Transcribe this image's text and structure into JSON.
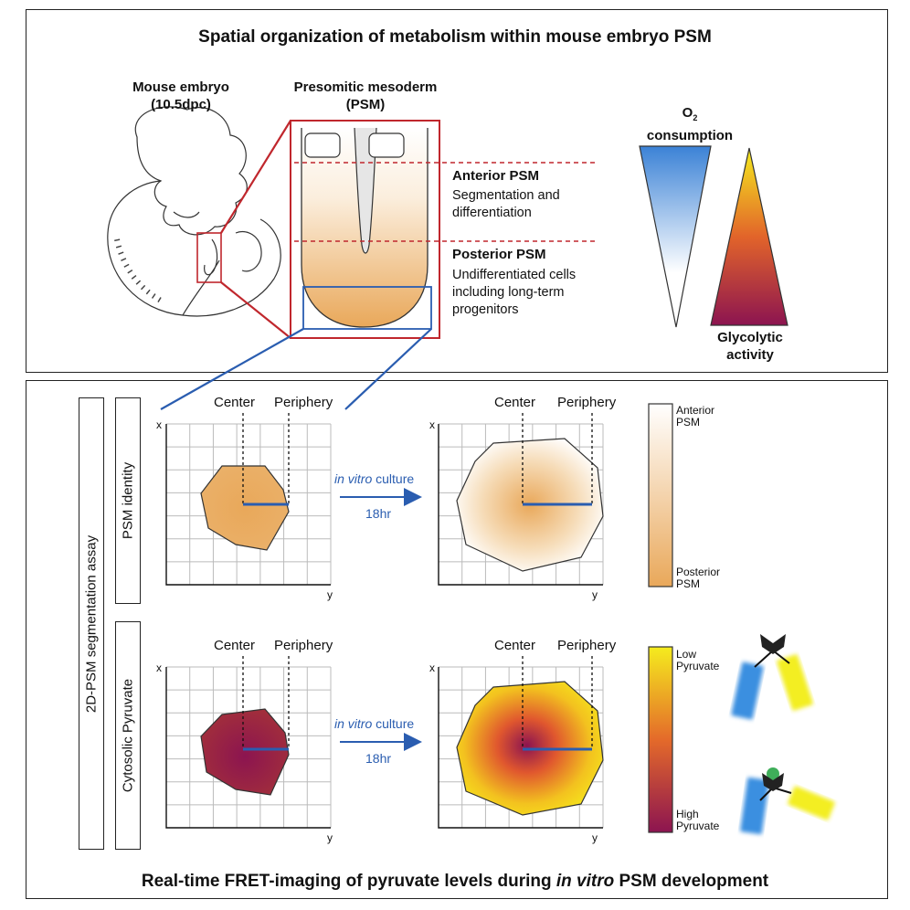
{
  "top": {
    "title": "Spatial organization of metabolism within mouse embryo PSM",
    "embryo_label_1": "Mouse embryo",
    "embryo_label_2": "(10.5dpc)",
    "psm_label_1": "Presomitic mesoderm",
    "psm_label_2": "(PSM)",
    "anterior_title": "Anterior PSM",
    "anterior_desc_1": "Segmentation and",
    "anterior_desc_2": "differentiation",
    "posterior_title": "Posterior PSM",
    "posterior_desc_1": "Undifferentiated cells",
    "posterior_desc_2": "including long-term",
    "posterior_desc_3": "progenitors",
    "o2_label_main": "O",
    "o2_label_sub": "2",
    "o2_label_2": "consumption",
    "glyco_label_1": "Glycolytic",
    "glyco_label_2": "activity"
  },
  "bottom": {
    "assay_label": "2D-PSM segmentation assay",
    "row1_label": "PSM identity",
    "row2_label": "Cytosolic Pyruvate",
    "center": "Center",
    "periphery": "Periphery",
    "axis_x": "x",
    "axis_y": "y",
    "culture_italic": "in vitro",
    "culture_rest": " culture",
    "duration": "18hr",
    "scale1_top_1": "Anterior",
    "scale1_top_2": "PSM",
    "scale1_bottom_1": "Posterior",
    "scale1_bottom_2": "PSM",
    "scale2_top_1": "Low",
    "scale2_top_2": "Pyruvate",
    "scale2_bottom_1": "High",
    "scale2_bottom_2": "Pyruvate",
    "footer_pre": "Real-time FRET-imaging of pyruvate levels during ",
    "footer_italic": "in vitro",
    "footer_post": " PSM development"
  },
  "colors": {
    "psm_orange": "#e9a85a",
    "magenta": "#8c1450",
    "yellow": "#f2e21a",
    "blue": "#2a5db0",
    "red_frame": "#c0272d",
    "fret_blue": "#3b8fe0",
    "fret_yellow": "#f3ee20",
    "sensor_green": "#3fae5a"
  }
}
